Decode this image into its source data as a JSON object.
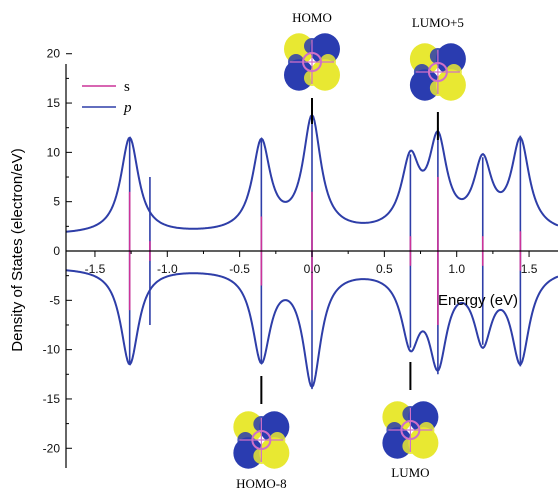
{
  "chart_data": {
    "type": "line",
    "xlabel": "Energy (eV)",
    "ylabel": "Density of States (electron/eV)",
    "xlim": [
      -1.7,
      1.7
    ],
    "ylim": [
      -22,
      22
    ],
    "x_ticks": [
      "-1.5",
      "-1.0",
      "-0.5",
      "0.0",
      "0.5",
      "1.0",
      "1.5"
    ],
    "x_tick_values": [
      -1.5,
      -1.0,
      -0.5,
      0.0,
      0.5,
      1.0,
      1.5
    ],
    "y_ticks": [
      "20",
      "15",
      "10",
      "5",
      "0",
      "-5",
      "-10",
      "-15",
      "-20"
    ],
    "y_tick_values": [
      20,
      15,
      10,
      5,
      0,
      -5,
      -10,
      -15,
      -20
    ],
    "grid": false,
    "legend_position": "top-left",
    "colors": {
      "s": "#cc3399",
      "p": "#2e3ea8",
      "axis": "#000000",
      "orbital_yellow": "#e8e832",
      "orbital_blue": "#2a3cb0"
    },
    "series": [
      {
        "name": "s",
        "color": "#cc3399",
        "x": [
          -1.26,
          -1.12,
          -0.35,
          0.0,
          0.68,
          0.87,
          1.18,
          1.44
        ],
        "values": [
          6.0,
          1.0,
          3.5,
          6.0,
          1.5,
          7.5,
          1.5,
          2.0
        ]
      },
      {
        "name": "p",
        "color": "#2e3ea8",
        "peaks": [
          {
            "x": -1.26,
            "height": 11.5
          },
          {
            "x": -0.35,
            "height": 11.3
          },
          {
            "x": 0.0,
            "height": 14.0
          },
          {
            "x": 0.68,
            "height": 9.8
          },
          {
            "x": 0.87,
            "height": 12.5
          },
          {
            "x": 1.18,
            "height": 9.5
          },
          {
            "x": 1.44,
            "height": 11.7
          }
        ],
        "lines_x": [
          -1.26,
          -1.12,
          -0.35,
          0.0,
          0.68,
          0.87,
          1.18,
          1.44
        ],
        "lines_values": [
          11.5,
          7.5,
          11.3,
          14.0,
          9.8,
          12.5,
          9.5,
          11.7
        ]
      }
    ],
    "annotations": [
      {
        "text": "HOMO",
        "x": 0.0,
        "side": "top"
      },
      {
        "text": "LUMO+5",
        "x": 0.87,
        "side": "top"
      },
      {
        "text": "HOMO-8",
        "x": -0.35,
        "side": "bottom"
      },
      {
        "text": "LUMO",
        "x": 0.68,
        "side": "bottom"
      }
    ]
  },
  "legend": {
    "s_label": "s",
    "p_label": "p"
  }
}
